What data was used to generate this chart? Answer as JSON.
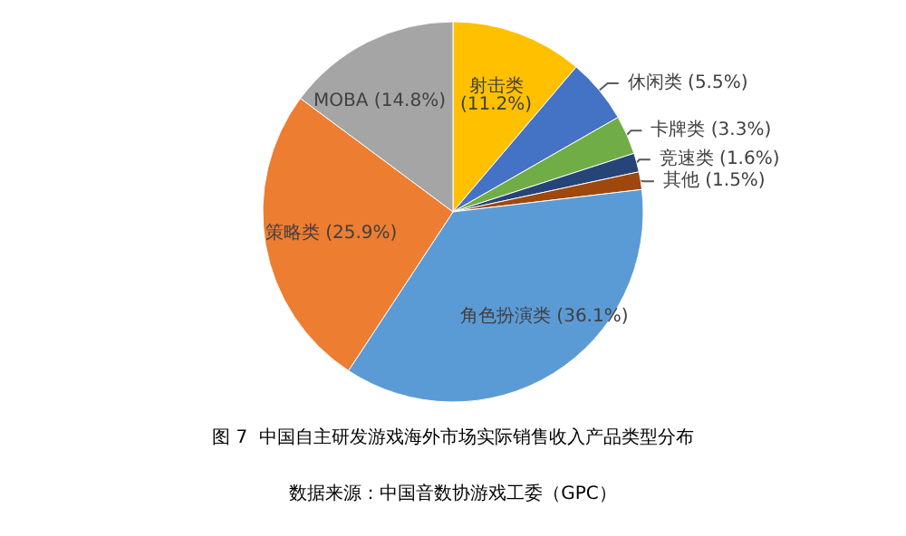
{
  "chart_data": {
    "type": "pie",
    "title": "图 7  中国自主研发游戏海外市场实际销售收入产品类型分布",
    "annotations": [
      "数据来源：中国音数协游戏工委（GPC）"
    ],
    "categories": [
      "射击类",
      "休闲类",
      "卡牌类",
      "竞速类",
      "其他",
      "角色扮演类",
      "策略类",
      "MOBA"
    ],
    "values": [
      11.2,
      5.5,
      3.3,
      1.6,
      1.5,
      36.1,
      25.9,
      14.8
    ],
    "value_labels": [
      "(11.2%)",
      "(5.5%)",
      "(3.3%)",
      "(1.6%)",
      "(1.5%)",
      "(36.1%)",
      "(25.9%)",
      "(14.8%)"
    ],
    "colors": [
      "#ffc000",
      "#4472c4",
      "#70ad47",
      "#264478",
      "#9e480e",
      "#5b9bd5",
      "#ed7d31",
      "#a5a5a5"
    ],
    "legend": false
  }
}
